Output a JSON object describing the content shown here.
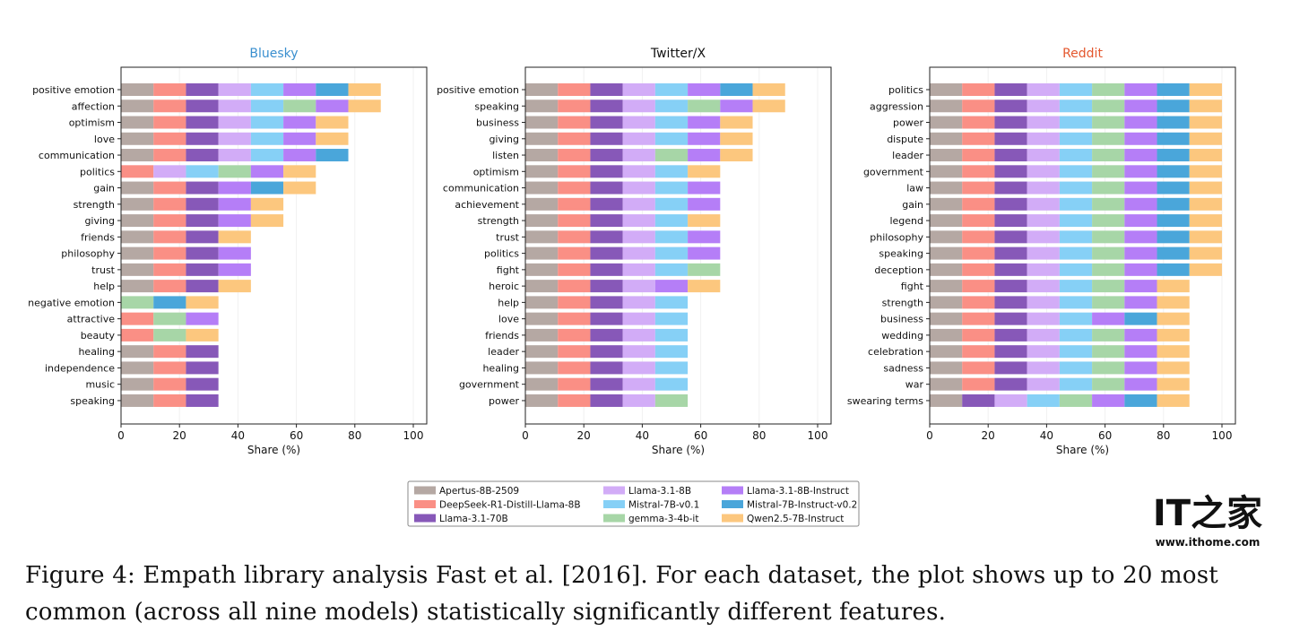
{
  "chart_data": {
    "type": "bar",
    "orientation": "horizontal-stacked",
    "xlabel": "Share (%)",
    "xlim": [
      0,
      100
    ],
    "xticks": [
      0,
      20,
      40,
      60,
      80,
      100
    ],
    "segment_share": 11.11,
    "grid": "vertical, faint",
    "legend_position": "bottom-center",
    "models": [
      {
        "name": "Apertus-8B-2509",
        "color": "#b5a8a3"
      },
      {
        "name": "DeepSeek-R1-Distill-Llama-8B",
        "color": "#fa8f85"
      },
      {
        "name": "Llama-3.1-70B",
        "color": "#8758b8"
      },
      {
        "name": "Llama-3.1-8B",
        "color": "#d2acf7"
      },
      {
        "name": "Mistral-7B-v0.1",
        "color": "#86d0f6"
      },
      {
        "name": "gemma-3-4b-it",
        "color": "#a7d6a7"
      },
      {
        "name": "Llama-3.1-8B-Instruct",
        "color": "#b57ef7"
      },
      {
        "name": "Mistral-7B-Instruct-v0.2",
        "color": "#4aa6da"
      },
      {
        "name": "Qwen2.5-7B-Instruct",
        "color": "#fcc77e"
      }
    ],
    "panels": [
      {
        "title": "Bluesky",
        "title_color": "#3a8fcf",
        "features": [
          {
            "label": "positive emotion",
            "models": [
              0,
              1,
              2,
              3,
              4,
              6,
              7,
              8
            ]
          },
          {
            "label": "affection",
            "models": [
              0,
              1,
              2,
              3,
              4,
              5,
              6,
              8
            ]
          },
          {
            "label": "optimism",
            "models": [
              0,
              1,
              2,
              3,
              4,
              6,
              8
            ]
          },
          {
            "label": "love",
            "models": [
              0,
              1,
              2,
              3,
              4,
              6,
              8
            ]
          },
          {
            "label": "communication",
            "models": [
              0,
              1,
              2,
              3,
              4,
              6,
              7
            ]
          },
          {
            "label": "politics",
            "models": [
              1,
              3,
              4,
              5,
              6,
              8
            ]
          },
          {
            "label": "gain",
            "models": [
              0,
              1,
              2,
              6,
              7,
              8
            ]
          },
          {
            "label": "strength",
            "models": [
              0,
              1,
              2,
              6,
              8
            ]
          },
          {
            "label": "giving",
            "models": [
              0,
              1,
              2,
              6,
              8
            ]
          },
          {
            "label": "friends",
            "models": [
              0,
              1,
              2,
              8
            ]
          },
          {
            "label": "philosophy",
            "models": [
              0,
              1,
              2,
              6
            ]
          },
          {
            "label": "trust",
            "models": [
              0,
              1,
              2,
              6
            ]
          },
          {
            "label": "help",
            "models": [
              0,
              1,
              2,
              8
            ]
          },
          {
            "label": "negative emotion",
            "models": [
              5,
              7,
              8
            ]
          },
          {
            "label": "attractive",
            "models": [
              1,
              5,
              6
            ]
          },
          {
            "label": "beauty",
            "models": [
              1,
              5,
              8
            ]
          },
          {
            "label": "healing",
            "models": [
              0,
              1,
              2
            ]
          },
          {
            "label": "independence",
            "models": [
              0,
              1,
              2
            ]
          },
          {
            "label": "music",
            "models": [
              0,
              1,
              2
            ]
          },
          {
            "label": "speaking",
            "models": [
              0,
              1,
              2
            ]
          }
        ]
      },
      {
        "title": "Twitter/X",
        "title_color": "#111111",
        "features": [
          {
            "label": "positive emotion",
            "models": [
              0,
              1,
              2,
              3,
              4,
              6,
              7,
              8
            ]
          },
          {
            "label": "speaking",
            "models": [
              0,
              1,
              2,
              3,
              4,
              5,
              6,
              8
            ]
          },
          {
            "label": "business",
            "models": [
              0,
              1,
              2,
              3,
              4,
              6,
              8
            ]
          },
          {
            "label": "giving",
            "models": [
              0,
              1,
              2,
              3,
              4,
              6,
              8
            ]
          },
          {
            "label": "listen",
            "models": [
              0,
              1,
              2,
              3,
              5,
              6,
              8
            ]
          },
          {
            "label": "optimism",
            "models": [
              0,
              1,
              2,
              3,
              4,
              8
            ]
          },
          {
            "label": "communication",
            "models": [
              0,
              1,
              2,
              3,
              4,
              6
            ]
          },
          {
            "label": "achievement",
            "models": [
              0,
              1,
              2,
              3,
              4,
              6
            ]
          },
          {
            "label": "strength",
            "models": [
              0,
              1,
              2,
              3,
              4,
              8
            ]
          },
          {
            "label": "trust",
            "models": [
              0,
              1,
              2,
              3,
              4,
              6
            ]
          },
          {
            "label": "politics",
            "models": [
              0,
              1,
              2,
              3,
              4,
              6
            ]
          },
          {
            "label": "fight",
            "models": [
              0,
              1,
              2,
              3,
              4,
              5
            ]
          },
          {
            "label": "heroic",
            "models": [
              0,
              1,
              2,
              3,
              6,
              8
            ]
          },
          {
            "label": "help",
            "models": [
              0,
              1,
              2,
              3,
              4
            ]
          },
          {
            "label": "love",
            "models": [
              0,
              1,
              2,
              3,
              4
            ]
          },
          {
            "label": "friends",
            "models": [
              0,
              1,
              2,
              3,
              4
            ]
          },
          {
            "label": "leader",
            "models": [
              0,
              1,
              2,
              3,
              4
            ]
          },
          {
            "label": "healing",
            "models": [
              0,
              1,
              2,
              3,
              4
            ]
          },
          {
            "label": "government",
            "models": [
              0,
              1,
              2,
              3,
              4
            ]
          },
          {
            "label": "power",
            "models": [
              0,
              1,
              2,
              3,
              5
            ]
          }
        ]
      },
      {
        "title": "Reddit",
        "title_color": "#e4572e",
        "features": [
          {
            "label": "politics",
            "models": [
              0,
              1,
              2,
              3,
              4,
              5,
              6,
              7,
              8
            ]
          },
          {
            "label": "aggression",
            "models": [
              0,
              1,
              2,
              3,
              4,
              5,
              6,
              7,
              8
            ]
          },
          {
            "label": "power",
            "models": [
              0,
              1,
              2,
              3,
              4,
              5,
              6,
              7,
              8
            ]
          },
          {
            "label": "dispute",
            "models": [
              0,
              1,
              2,
              3,
              4,
              5,
              6,
              7,
              8
            ]
          },
          {
            "label": "leader",
            "models": [
              0,
              1,
              2,
              3,
              4,
              5,
              6,
              7,
              8
            ]
          },
          {
            "label": "government",
            "models": [
              0,
              1,
              2,
              3,
              4,
              5,
              6,
              7,
              8
            ]
          },
          {
            "label": "law",
            "models": [
              0,
              1,
              2,
              3,
              4,
              5,
              6,
              7,
              8
            ]
          },
          {
            "label": "gain",
            "models": [
              0,
              1,
              2,
              3,
              4,
              5,
              6,
              7,
              8
            ]
          },
          {
            "label": "legend",
            "models": [
              0,
              1,
              2,
              3,
              4,
              5,
              6,
              7,
              8
            ]
          },
          {
            "label": "philosophy",
            "models": [
              0,
              1,
              2,
              3,
              4,
              5,
              6,
              7,
              8
            ]
          },
          {
            "label": "speaking",
            "models": [
              0,
              1,
              2,
              3,
              4,
              5,
              6,
              7,
              8
            ]
          },
          {
            "label": "deception",
            "models": [
              0,
              1,
              2,
              3,
              4,
              5,
              6,
              7,
              8
            ]
          },
          {
            "label": "fight",
            "models": [
              0,
              1,
              2,
              3,
              4,
              5,
              6,
              8
            ]
          },
          {
            "label": "strength",
            "models": [
              0,
              1,
              2,
              3,
              4,
              5,
              6,
              8
            ]
          },
          {
            "label": "business",
            "models": [
              0,
              1,
              2,
              3,
              4,
              6,
              7,
              8
            ]
          },
          {
            "label": "wedding",
            "models": [
              0,
              1,
              2,
              3,
              4,
              5,
              6,
              8
            ]
          },
          {
            "label": "celebration",
            "models": [
              0,
              1,
              2,
              3,
              4,
              5,
              6,
              8
            ]
          },
          {
            "label": "sadness",
            "models": [
              0,
              1,
              2,
              3,
              4,
              5,
              6,
              8
            ]
          },
          {
            "label": "war",
            "models": [
              0,
              1,
              2,
              3,
              4,
              5,
              6,
              8
            ]
          },
          {
            "label": "swearing terms",
            "models": [
              0,
              2,
              3,
              4,
              5,
              6,
              7,
              8
            ]
          }
        ]
      }
    ]
  },
  "caption": {
    "line1": "Figure 4: Empath library analysis Fast et al. [2016]. For each dataset, the plot shows up to 20 most",
    "line2": "common (across all nine models) statistically significantly different features."
  },
  "watermark": {
    "mark": "IT之家",
    "url": "www.ithome.com"
  }
}
